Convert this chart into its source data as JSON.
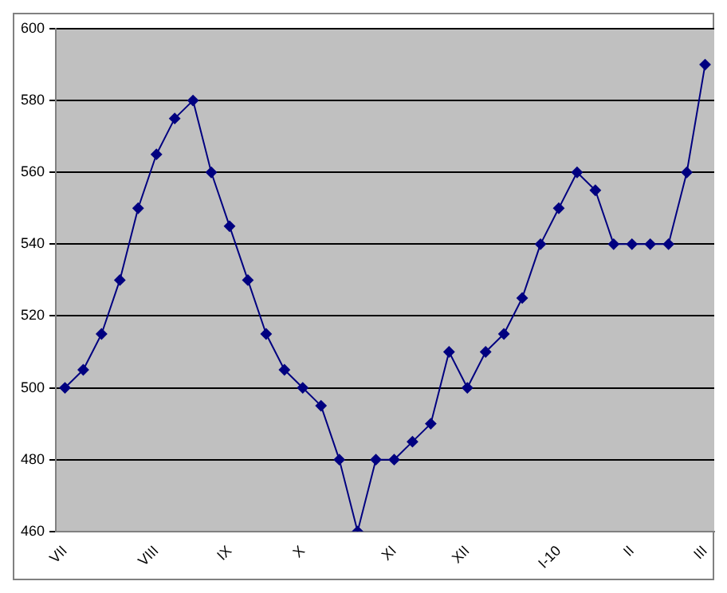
{
  "chart_data": {
    "type": "line",
    "categories": [
      "VII",
      null,
      null,
      null,
      null,
      "VIII",
      null,
      null,
      null,
      "IX",
      null,
      null,
      null,
      "X",
      null,
      null,
      null,
      null,
      "XI",
      null,
      null,
      null,
      "XII",
      null,
      null,
      null,
      null,
      "I-10",
      null,
      null,
      null,
      "II",
      null,
      null,
      null,
      "III"
    ],
    "series": [
      {
        "color": "#000080",
        "values": [
          500,
          505,
          515,
          530,
          550,
          565,
          575,
          580,
          560,
          545,
          530,
          515,
          505,
          500,
          495,
          480,
          460,
          480,
          480,
          485,
          490,
          510,
          500,
          510,
          515,
          525,
          540,
          550,
          560,
          555,
          540,
          540,
          540,
          540,
          560,
          590
        ]
      }
    ],
    "ylim": [
      460,
      600
    ],
    "yticks": [
      460,
      480,
      500,
      520,
      540,
      560,
      580,
      600
    ],
    "grid": "y",
    "legend": false,
    "marker": "diamond",
    "line_style": "solid"
  }
}
